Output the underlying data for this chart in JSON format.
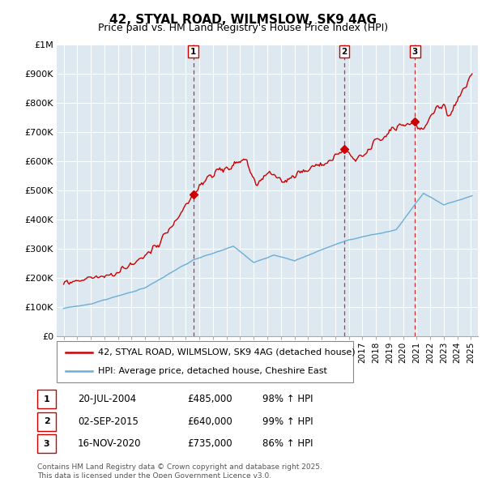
{
  "title": "42, STYAL ROAD, WILMSLOW, SK9 4AG",
  "subtitle": "Price paid vs. HM Land Registry's House Price Index (HPI)",
  "legend_line1": "42, STYAL ROAD, WILMSLOW, SK9 4AG (detached house)",
  "legend_line2": "HPI: Average price, detached house, Cheshire East",
  "red_color": "#cc0000",
  "blue_color": "#6baed6",
  "chart_bg": "#dde8f0",
  "grid_color": "#ffffff",
  "transactions": [
    {
      "label": "1",
      "date": "20-JUL-2004",
      "price": 485000,
      "pct": "98%",
      "year": 2004.55
    },
    {
      "label": "2",
      "date": "02-SEP-2015",
      "price": 640000,
      "pct": "99%",
      "year": 2015.67
    },
    {
      "label": "3",
      "date": "16-NOV-2020",
      "price": 735000,
      "pct": "86%",
      "year": 2020.88
    }
  ],
  "footer": "Contains HM Land Registry data © Crown copyright and database right 2025.\nThis data is licensed under the Open Government Licence v3.0.",
  "ylim": [
    0,
    1000000
  ],
  "yticks": [
    0,
    100000,
    200000,
    300000,
    400000,
    500000,
    600000,
    700000,
    800000,
    900000,
    1000000
  ],
  "ytick_labels": [
    "£0",
    "£100K",
    "£200K",
    "£300K",
    "£400K",
    "£500K",
    "£600K",
    "£700K",
    "£800K",
    "£900K",
    "£1M"
  ],
  "xlim_start": 1994.5,
  "xlim_end": 2025.5
}
